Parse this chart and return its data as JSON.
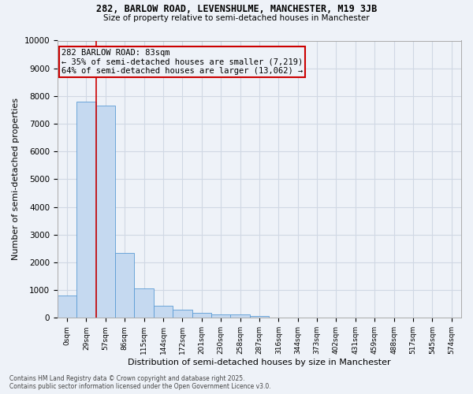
{
  "title": "282, BARLOW ROAD, LEVENSHULME, MANCHESTER, M19 3JB",
  "subtitle": "Size of property relative to semi-detached houses in Manchester",
  "xlabel": "Distribution of semi-detached houses by size in Manchester",
  "ylabel": "Number of semi-detached properties",
  "footer_line1": "Contains HM Land Registry data © Crown copyright and database right 2025.",
  "footer_line2": "Contains public sector information licensed under the Open Government Licence v3.0.",
  "bin_labels": [
    "0sqm",
    "29sqm",
    "57sqm",
    "86sqm",
    "115sqm",
    "144sqm",
    "172sqm",
    "201sqm",
    "230sqm",
    "258sqm",
    "287sqm",
    "316sqm",
    "344sqm",
    "373sqm",
    "402sqm",
    "431sqm",
    "459sqm",
    "488sqm",
    "517sqm",
    "545sqm",
    "574sqm"
  ],
  "bar_values": [
    800,
    7800,
    7650,
    2350,
    1050,
    450,
    290,
    175,
    130,
    110,
    60,
    10,
    5,
    2,
    1,
    0,
    0,
    0,
    0,
    0,
    0
  ],
  "bar_color": "#c5d9f0",
  "bar_edge_color": "#5b9bd5",
  "grid_color": "#d0d8e4",
  "bg_color": "#eef2f8",
  "vline_x": 2.0,
  "vline_color": "#cc0000",
  "annotation_text": "282 BARLOW ROAD: 83sqm\n← 35% of semi-detached houses are smaller (7,219)\n64% of semi-detached houses are larger (13,062) →",
  "ylim": [
    0,
    10000
  ],
  "yticks": [
    0,
    1000,
    2000,
    3000,
    4000,
    5000,
    6000,
    7000,
    8000,
    9000,
    10000
  ]
}
